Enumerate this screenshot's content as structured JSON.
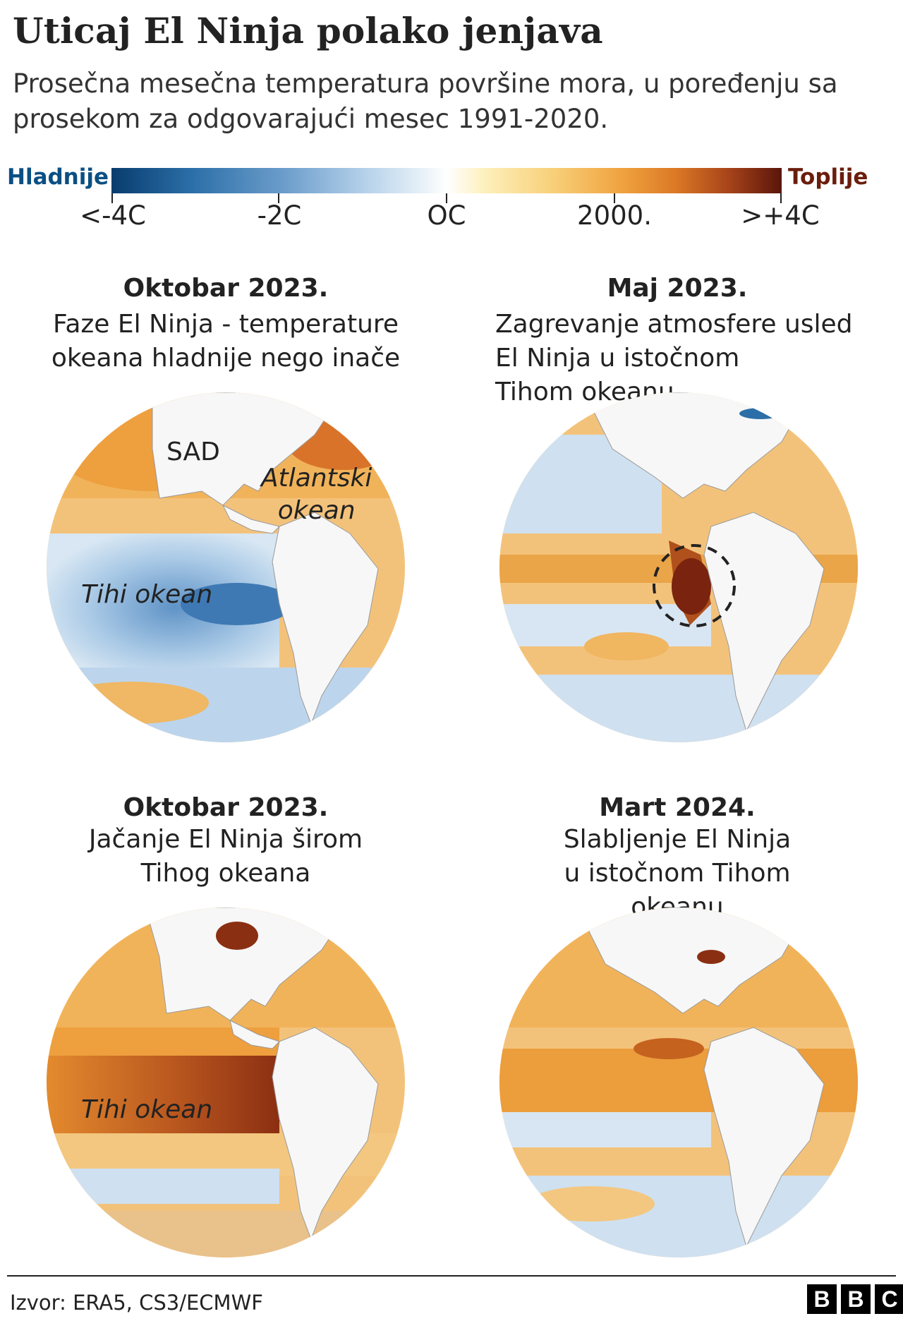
{
  "header": {
    "title": "Uticaj El Ninja polako jenjava",
    "subtitle": "Prosečna mesečna temperatura površine mora, u poređenju sa prosekom za odgovarajući mesec 1991-2020."
  },
  "legend": {
    "cold_label": "Hladnije",
    "warm_label": "Toplije",
    "ticks": [
      "<-4C",
      "-2C",
      "OC",
      "2000.",
      ">+4C"
    ],
    "colors": {
      "cold": "#083c6e",
      "neutral": "#ffffff",
      "warm": "#5a150b"
    }
  },
  "panels": [
    {
      "heading": "Oktobar 2023.",
      "description": "Faze El Ninja - temperature\nokeana hladnije nego inače",
      "labels": {
        "usa": "SAD",
        "atlantic": "Atlantski\nokean",
        "pacific": "Tihi okean"
      },
      "pattern": "cold-pacific"
    },
    {
      "heading": "Maj 2023.",
      "description": "Zagrevanje atmosfere usled\nEl Ninja u istočnom\nTihom okeanu",
      "pattern": "coastal-warming"
    },
    {
      "heading": "Oktobar 2023.",
      "description": "Jačanje El Ninja širom\nTihog okeana",
      "labels": {
        "pacific": "Tihi okean"
      },
      "pattern": "strong-warm"
    },
    {
      "heading": "Mart 2024.",
      "description": "Slabljenje El Ninja\nu istočnom Tihom\nokeanu",
      "pattern": "weakening"
    }
  ],
  "footer": {
    "source": "Izvor: ERA5, CS3/ECMWF",
    "logo": [
      "B",
      "B",
      "C"
    ]
  }
}
